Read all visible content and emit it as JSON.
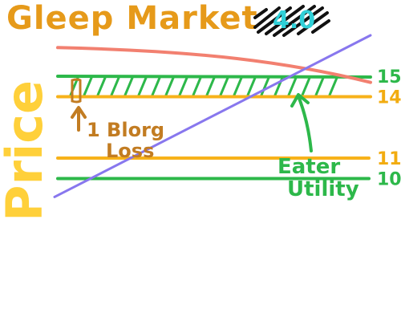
{
  "chart_data": {
    "type": "line",
    "title": "Gleep Market",
    "title_suffix": "4.0",
    "ylabel": "Price",
    "price_levels": [
      {
        "label": "15",
        "value": 15,
        "color": "#2db84a"
      },
      {
        "label": "14",
        "value": 14,
        "color": "#f7b21a"
      },
      {
        "label": "11",
        "value": 11,
        "color": "#f7b21a"
      },
      {
        "label": "10",
        "value": 10,
        "color": "#2db84a"
      }
    ],
    "series": [
      {
        "value_start": 16.4,
        "value_end": 14.7,
        "color": "#f28070"
      },
      {
        "value_start": 9.1,
        "value_end": 17.0,
        "color": "#8877ee"
      }
    ],
    "shaded_band": {
      "from": 14,
      "to": 15,
      "color": "#2db84a"
    },
    "annotations": [
      {
        "lines": [
          "1 Blorg",
          "Loss"
        ],
        "color": "#c27c22"
      },
      {
        "lines": [
          "Eater",
          "Utility"
        ],
        "color": "#2db84a"
      }
    ]
  },
  "colors": {
    "orange": "#f7b21a",
    "green": "#2db84a",
    "salmon": "#f28070",
    "purple": "#8877ee",
    "brown": "#c27c22",
    "title": "#e69a1a",
    "cyan": "#2fd0d8",
    "scribble": "#111111"
  }
}
